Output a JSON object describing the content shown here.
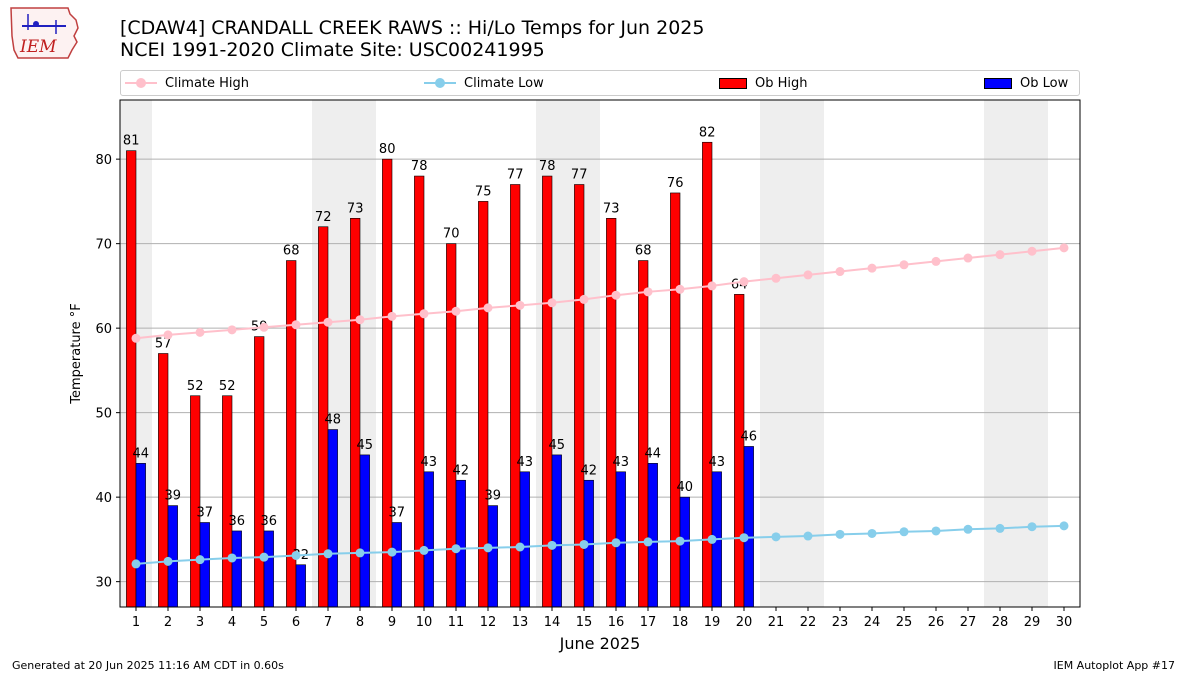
{
  "header": {
    "logo_text": "IEM",
    "title_line1": "[CDAW4] CRANDALL CREEK RAWS :: Hi/Lo Temps for Jun 2025",
    "title_line2": "NCEI 1991-2020 Climate Site: USC00241995"
  },
  "legend": {
    "climate_high": "Climate High",
    "climate_low": "Climate Low",
    "ob_high": "Ob High",
    "ob_low": "Ob Low"
  },
  "footer": {
    "generated": "Generated at 20 Jun 2025 11:16 AM CDT in 0.60s",
    "app": "IEM Autoplot App #17"
  },
  "colors": {
    "ob_high": "#ff0000",
    "ob_low": "#0000ff",
    "climate_high": "#ffc0cb",
    "climate_low": "#87ceeb",
    "weekend_shade": "#eeeeee",
    "grid": "#b0b0b0"
  },
  "chart_data": {
    "type": "bar",
    "xlabel": "June 2025",
    "ylabel": "Temperature °F",
    "ylim": [
      27,
      87
    ],
    "yticks": [
      30,
      40,
      50,
      60,
      70,
      80
    ],
    "grid": "horizontal",
    "legend_position": "top",
    "days": [
      1,
      2,
      3,
      4,
      5,
      6,
      7,
      8,
      9,
      10,
      11,
      12,
      13,
      14,
      15,
      16,
      17,
      18,
      19,
      20,
      21,
      22,
      23,
      24,
      25,
      26,
      27,
      28,
      29,
      30
    ],
    "weekend_days": [
      1,
      7,
      8,
      14,
      15,
      21,
      22,
      28,
      29
    ],
    "series": [
      {
        "name": "Ob High",
        "kind": "bar",
        "values": [
          81,
          57,
          52,
          52,
          59,
          68,
          72,
          73,
          80,
          78,
          70,
          75,
          77,
          78,
          77,
          73,
          68,
          76,
          82,
          64
        ]
      },
      {
        "name": "Ob Low",
        "kind": "bar",
        "values": [
          44,
          39,
          37,
          36,
          36,
          32,
          48,
          45,
          37,
          43,
          42,
          39,
          43,
          45,
          42,
          43,
          44,
          40,
          43,
          46
        ]
      },
      {
        "name": "Climate High",
        "kind": "line",
        "values": [
          58.8,
          59.2,
          59.5,
          59.8,
          60.1,
          60.4,
          60.7,
          61.0,
          61.4,
          61.7,
          62.0,
          62.4,
          62.7,
          63.0,
          63.4,
          63.9,
          64.3,
          64.6,
          65.0,
          65.5,
          65.9,
          66.3,
          66.7,
          67.1,
          67.5,
          67.9,
          68.3,
          68.7,
          69.1,
          69.5
        ]
      },
      {
        "name": "Climate Low",
        "kind": "line",
        "values": [
          32.1,
          32.4,
          32.6,
          32.8,
          32.9,
          33.1,
          33.3,
          33.4,
          33.5,
          33.7,
          33.9,
          34.0,
          34.1,
          34.3,
          34.4,
          34.6,
          34.7,
          34.8,
          35.0,
          35.2,
          35.3,
          35.4,
          35.6,
          35.7,
          35.9,
          36.0,
          36.2,
          36.3,
          36.5,
          36.6
        ]
      }
    ]
  }
}
